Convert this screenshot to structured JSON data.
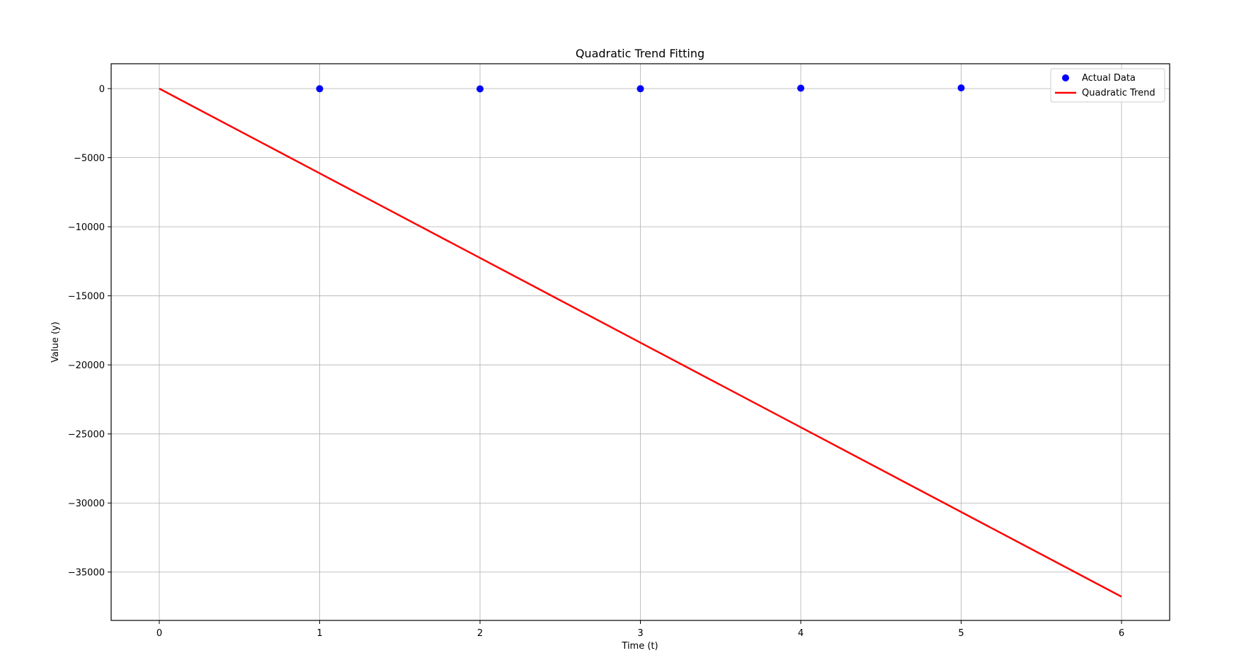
{
  "chart_data": {
    "type": "line",
    "title": "Quadratic Trend Fitting",
    "xlabel": "Time (t)",
    "ylabel": "Value (y)",
    "xlim": [
      -0.3,
      6.3
    ],
    "ylim": [
      -38500,
      1800
    ],
    "xticks": [
      0,
      1,
      2,
      3,
      4,
      5,
      6
    ],
    "yticks": [
      0,
      -5000,
      -10000,
      -15000,
      -20000,
      -25000,
      -30000,
      -35000
    ],
    "ytick_labels": [
      "0",
      "−5000",
      "−10000",
      "−15000",
      "−20000",
      "−25000",
      "−30000",
      "−35000"
    ],
    "grid": true,
    "legend": {
      "placement": "top-right",
      "entries": [
        "Actual Data",
        "Quadratic Trend"
      ]
    },
    "series": [
      {
        "name": "Actual Data",
        "kind": "scatter",
        "color": "#0000ff",
        "x": [
          1,
          2,
          3,
          4,
          5
        ],
        "y": [
          -10,
          -20,
          -10,
          30,
          50
        ]
      },
      {
        "name": "Quadratic Trend",
        "kind": "line",
        "color": "#ff0000",
        "x": [
          0,
          1,
          2,
          3,
          4,
          5,
          6
        ],
        "y": [
          0,
          -6130,
          -12260,
          -18390,
          -24520,
          -30650,
          -36780
        ]
      }
    ]
  }
}
